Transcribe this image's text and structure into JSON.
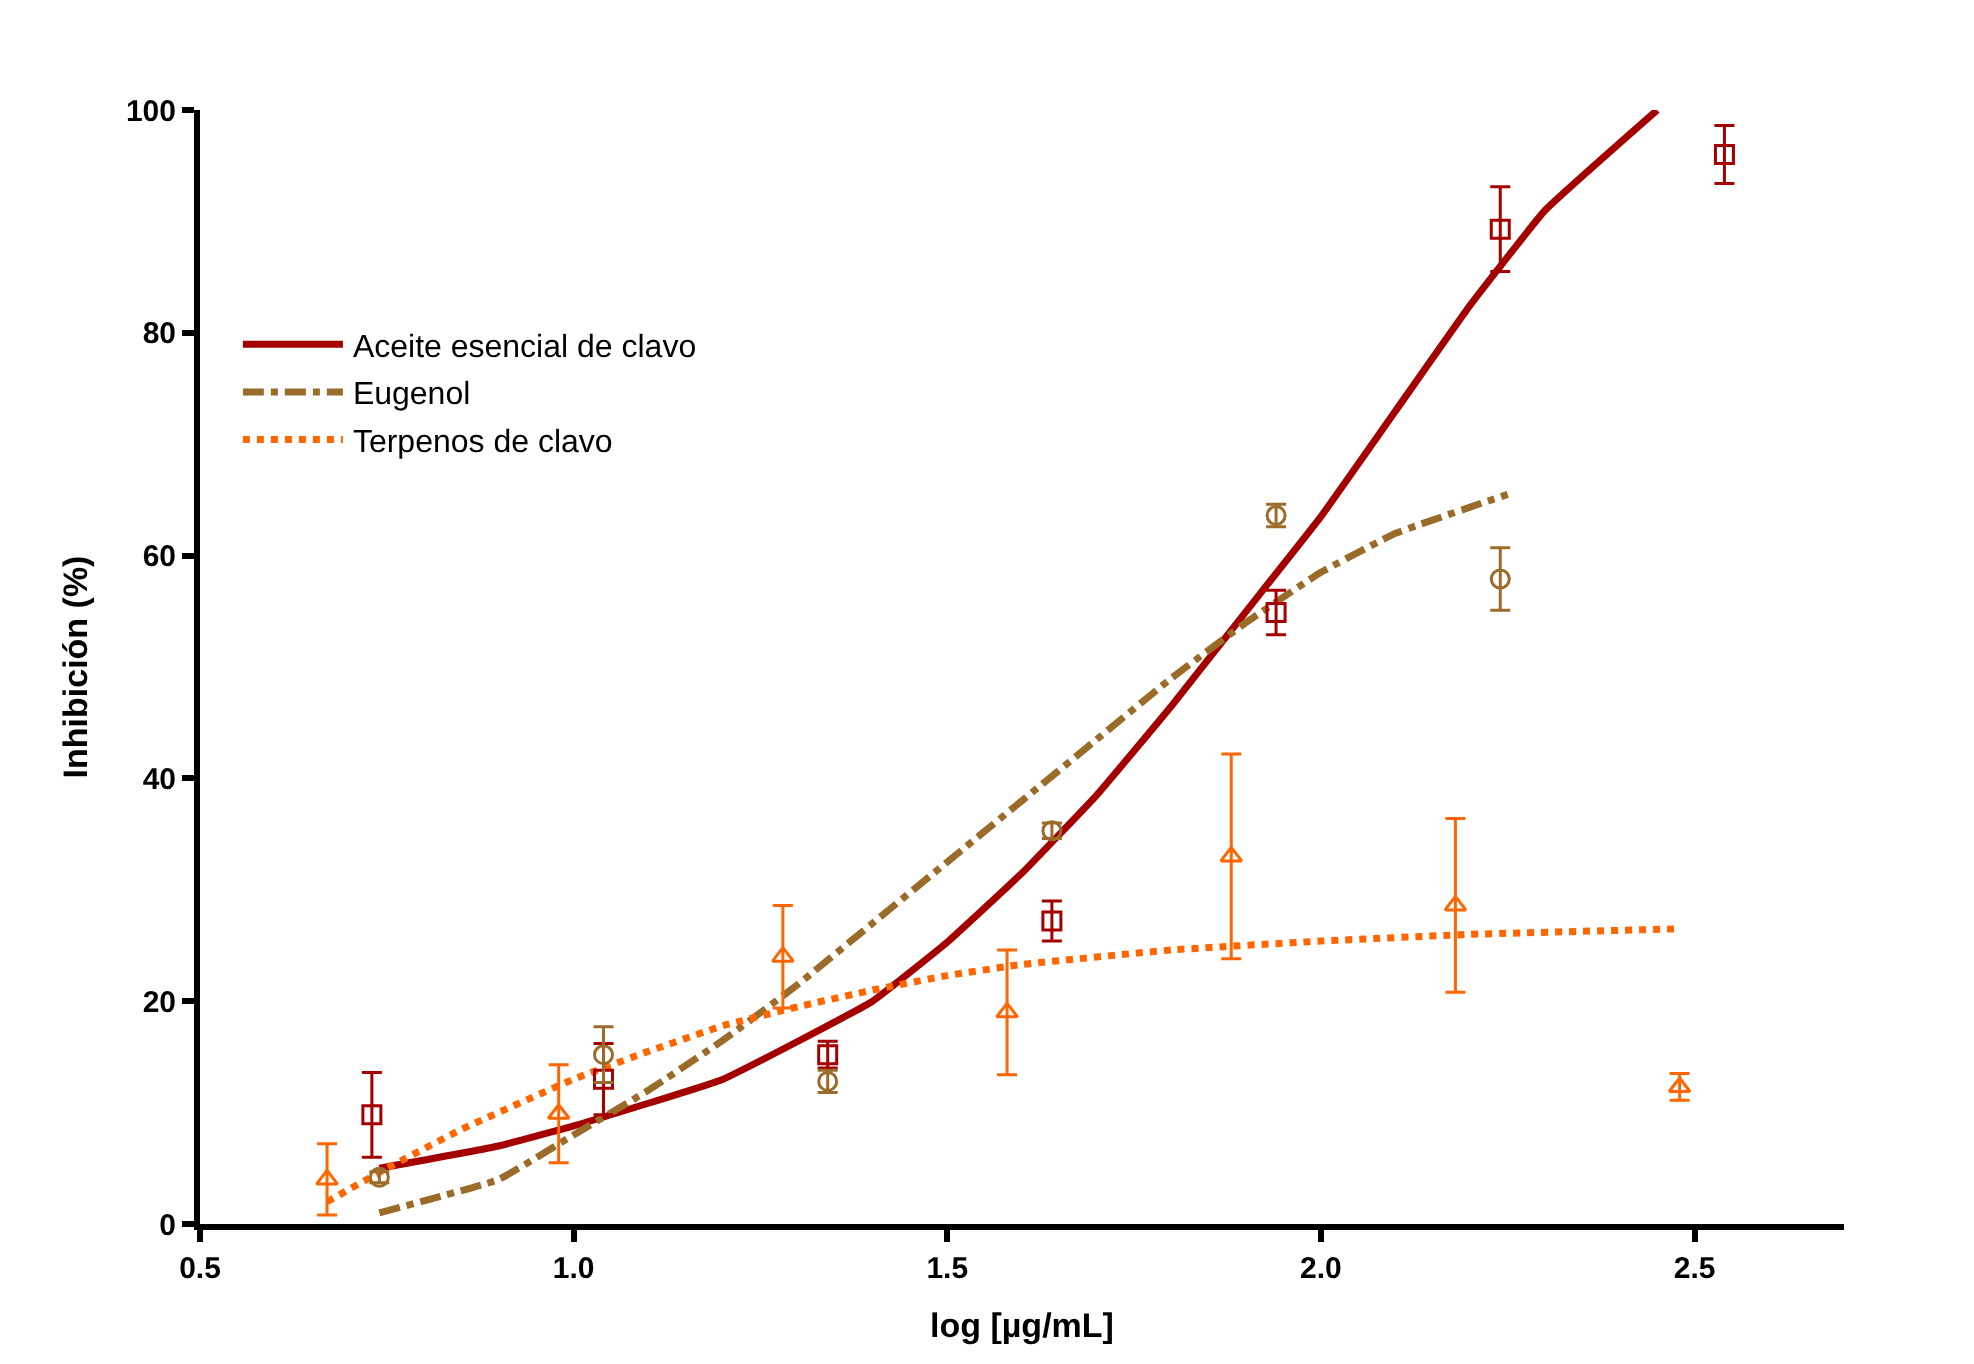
{
  "chart_data": {
    "type": "line",
    "xlabel": "log [µg/mL]",
    "ylabel": "Inhibición (%)",
    "xlim": [
      0.5,
      2.7
    ],
    "xticks": [
      0.5,
      {
        "value": 1,
        "label": "1.0"
      },
      1.5,
      {
        "value": 2,
        "label": "2.0"
      },
      2.5
    ],
    "ylim": [
      0,
      100
    ],
    "yticks": [
      0,
      20,
      40,
      60,
      80,
      100
    ],
    "legend": "top left",
    "series": [
      {
        "name": "Aceite esencial de clavo",
        "color": "#a50000",
        "line_style": "solid",
        "marker": "none",
        "x": [
          0.74,
          0.9,
          1.0,
          1.2,
          1.4,
          1.5,
          1.6,
          1.7,
          1.8,
          1.9,
          2.0,
          2.1,
          2.2,
          2.3,
          2.45
        ],
        "values": [
          5,
          7,
          8.8,
          13,
          20,
          25.3,
          31.5,
          38.5,
          46.5,
          55,
          63.5,
          73,
          82.5,
          91,
          100
        ]
      },
      {
        "name": "Eugenol",
        "color": "#9b6b2a",
        "line_style": "dashed",
        "marker": "none",
        "x": [
          0.74,
          0.9,
          1.0,
          1.1,
          1.2,
          1.3,
          1.4,
          1.5,
          1.6,
          1.7,
          1.8,
          1.9,
          2.0,
          2.1,
          2.25
        ],
        "values": [
          1,
          4,
          8,
          12,
          16.5,
          21.5,
          27,
          32.5,
          38,
          43.5,
          49,
          54,
          58.5,
          62,
          65.5
        ]
      },
      {
        "name": "Terpenos de clavo",
        "color": "#ff6600",
        "line_style": "dotted",
        "marker": "none",
        "x": [
          0.67,
          0.75,
          0.85,
          1.0,
          1.1,
          1.2,
          1.3,
          1.4,
          1.5,
          1.6,
          1.8,
          2.0,
          2.2,
          2.48
        ],
        "values": [
          2,
          5,
          8.5,
          13,
          15.5,
          17.8,
          19.5,
          21,
          22.3,
          23.3,
          24.6,
          25.4,
          26,
          26.5
        ]
      },
      {
        "type": "scatter",
        "color": "#a50000",
        "marker": "square",
        "x": [
          0.73,
          1.04,
          1.34,
          1.64,
          1.94,
          2.24,
          2.54
        ],
        "values": [
          9.8,
          13,
          15.2,
          27.2,
          54.9,
          89.3,
          96
        ],
        "errors": [
          3.8,
          3.2,
          1.2,
          1.8,
          2,
          3.8,
          2.6
        ]
      },
      {
        "type": "scatter",
        "color": "#9b6b2a",
        "marker": "circle",
        "x": [
          0.74,
          1.04,
          1.34,
          1.64,
          1.94,
          2.24
        ],
        "values": [
          4.2,
          15.2,
          12.8,
          35.3,
          63.6,
          57.9
        ],
        "errors": [
          0.5,
          2.5,
          1,
          0.7,
          1,
          2.8
        ]
      },
      {
        "type": "scatter",
        "color": "#ff6600",
        "marker": "triangle",
        "x": [
          0.67,
          0.98,
          1.28,
          1.58,
          1.88,
          2.18,
          2.48
        ],
        "values": [
          4,
          9.9,
          24,
          19,
          33,
          28.6,
          12.3
        ],
        "errors": [
          3.2,
          4.4,
          4.6,
          5.6,
          9.2,
          7.8,
          1.2
        ]
      }
    ]
  }
}
